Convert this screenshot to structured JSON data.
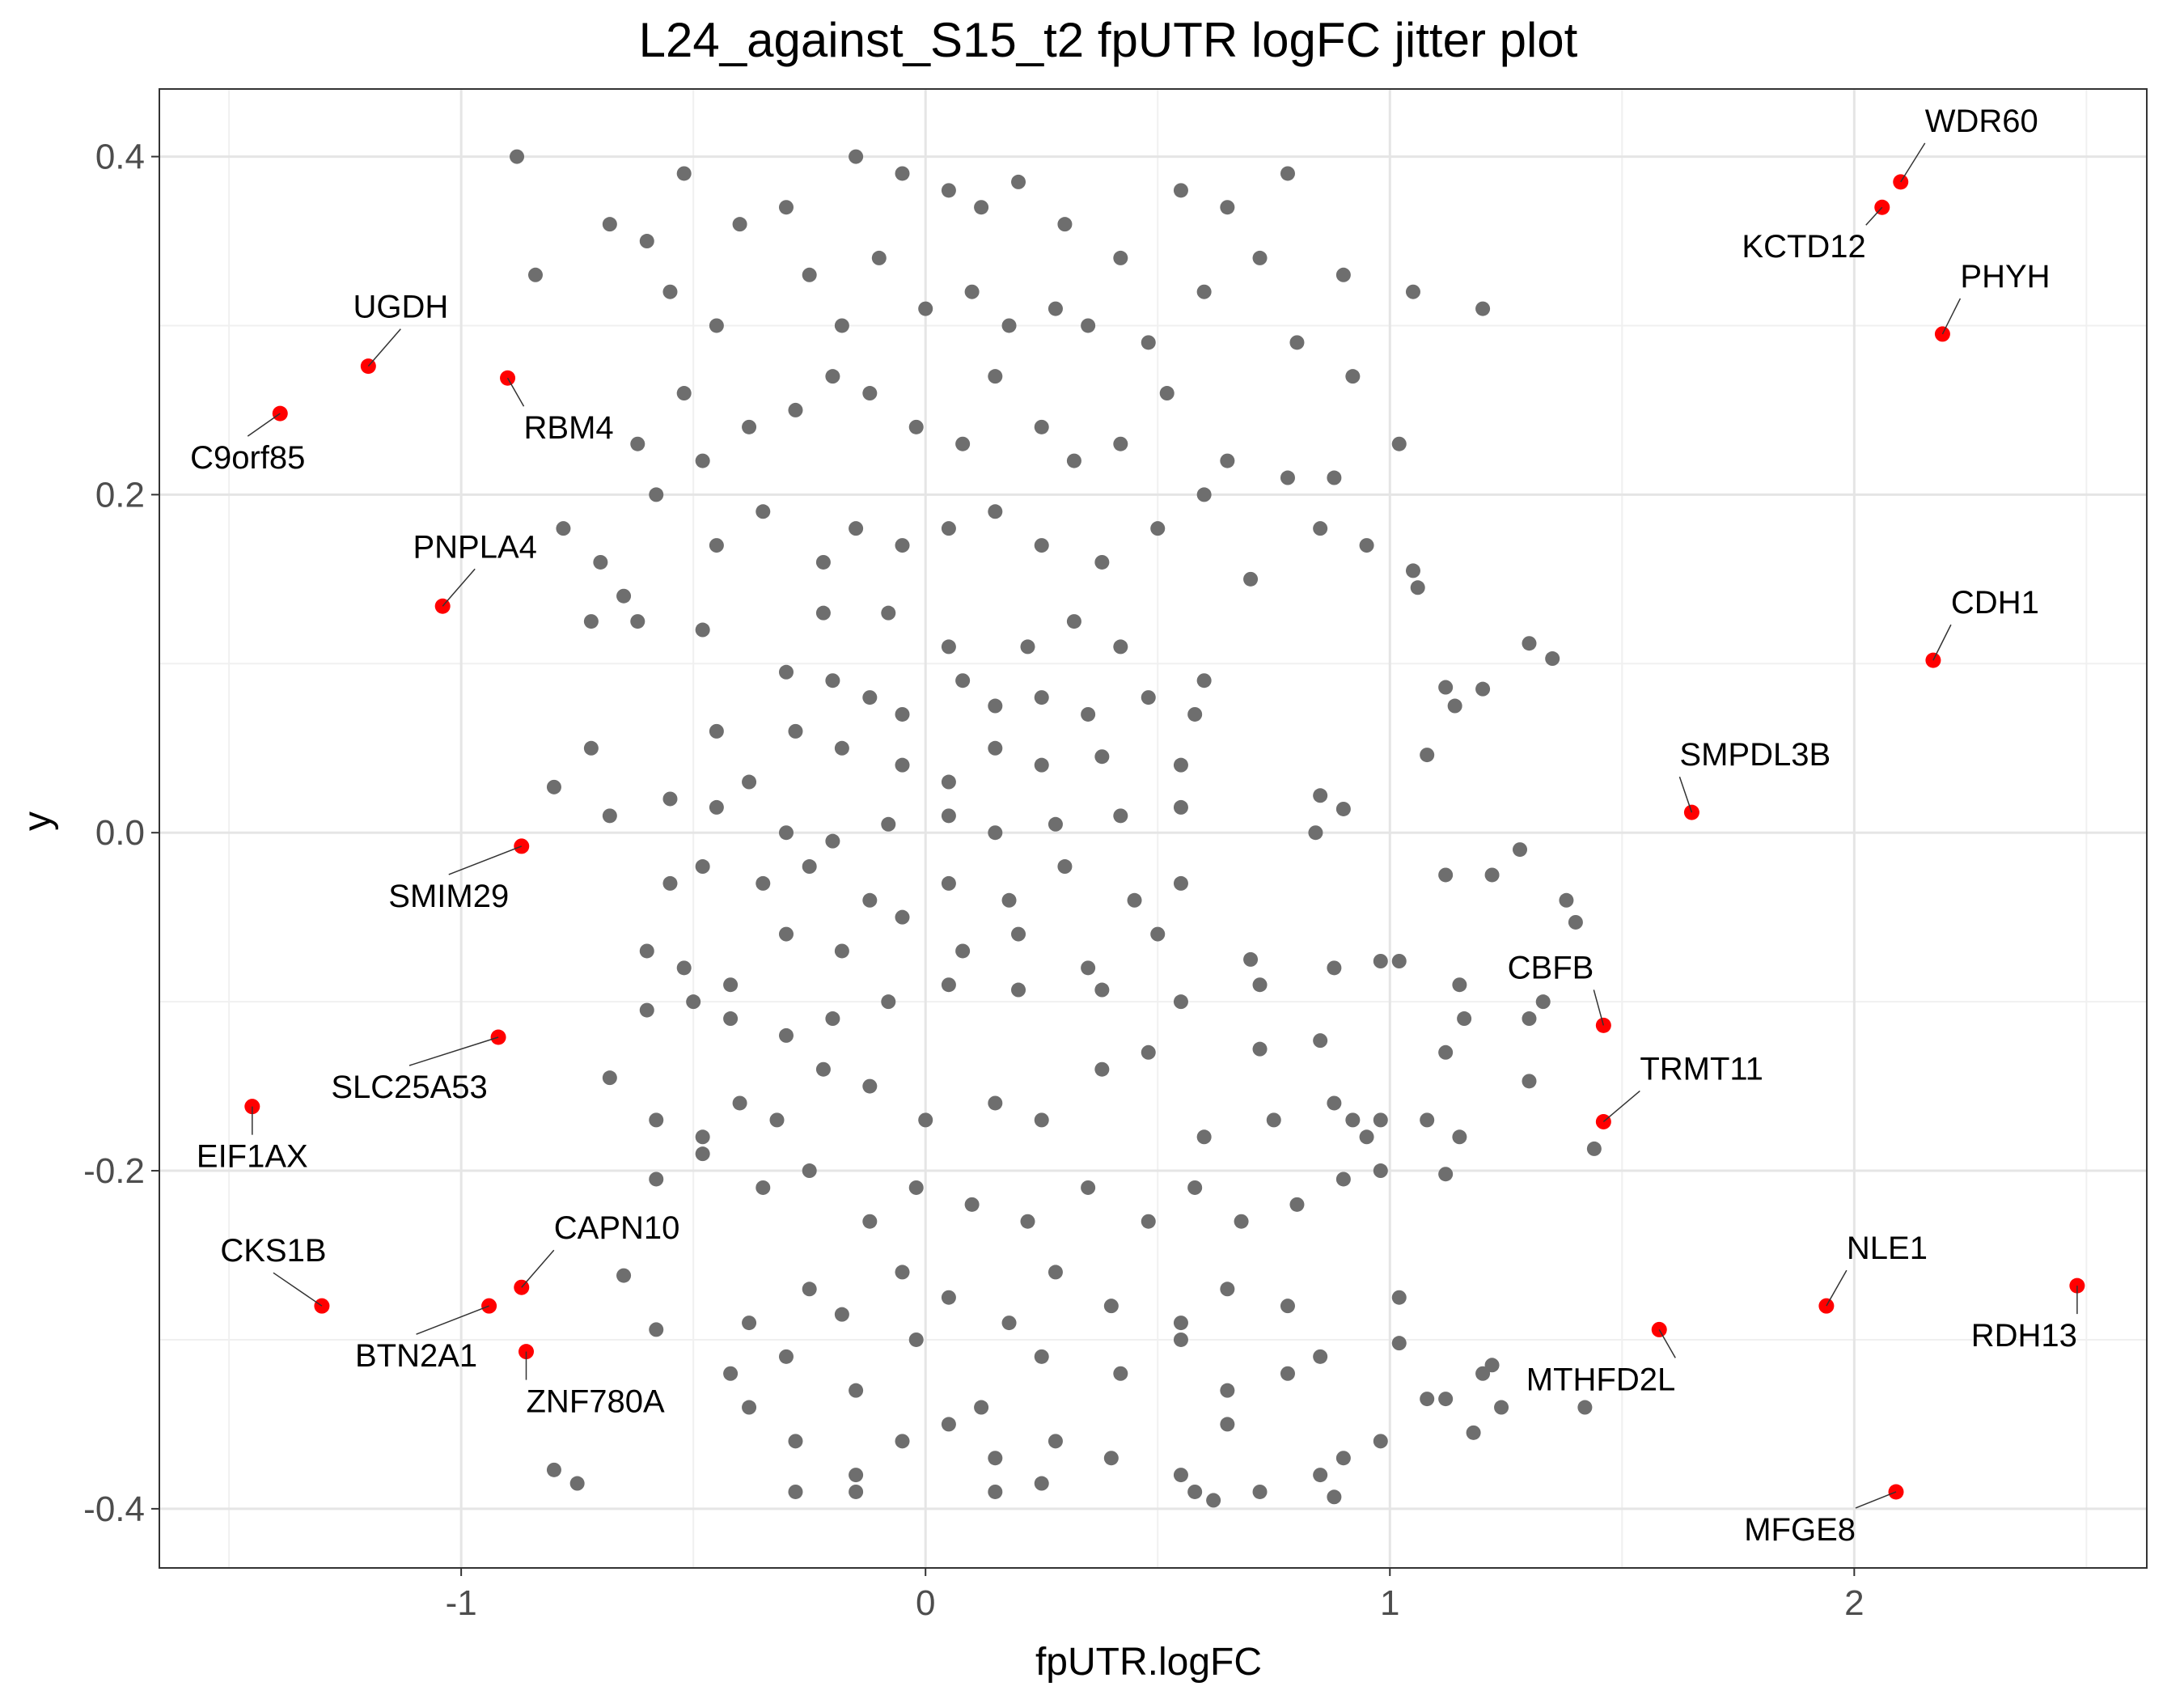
{
  "chart_data": {
    "type": "scatter",
    "title": "L24_against_S15_t2 fpUTR logFC jitter plot",
    "xlabel": "fpUTR.logFC",
    "ylabel": "y",
    "xlim": [
      -1.65,
      2.63
    ],
    "ylim": [
      -0.435,
      0.44
    ],
    "xticks": [
      -1,
      0,
      1,
      2
    ],
    "xtick_labels": [
      "-1",
      "0",
      "1",
      "2"
    ],
    "yticks": [
      -0.4,
      -0.2,
      0.0,
      0.2,
      0.4
    ],
    "ytick_labels": [
      "-0.4",
      "-0.2",
      "0.0",
      "0.2",
      "0.4"
    ],
    "grid": true,
    "colors": {
      "background_points": "#6e6e6e",
      "highlight_points": "#ff0000",
      "grid_major": "#e5e5e5",
      "grid_minor": "#f0f0f0",
      "panel_border": "#333333"
    },
    "highlighted": [
      {
        "label": "WDR60",
        "x": 2.1,
        "y": 0.385
      },
      {
        "label": "KCTD12",
        "x": 2.06,
        "y": 0.37
      },
      {
        "label": "PHYH",
        "x": 2.19,
        "y": 0.295
      },
      {
        "label": "CDH1",
        "x": 2.17,
        "y": 0.102
      },
      {
        "label": "SMPDL3B",
        "x": 1.65,
        "y": 0.012
      },
      {
        "label": "CBFB",
        "x": 1.46,
        "y": -0.114
      },
      {
        "label": "TRMT11",
        "x": 1.46,
        "y": -0.171
      },
      {
        "label": "NLE1",
        "x": 1.94,
        "y": -0.28
      },
      {
        "label": "RDH13",
        "x": 2.48,
        "y": -0.268
      },
      {
        "label": "MTHFD2L",
        "x": 1.58,
        "y": -0.294
      },
      {
        "label": "MFGE8",
        "x": 2.09,
        "y": -0.39
      },
      {
        "label": "UGDH",
        "x": -1.2,
        "y": 0.276
      },
      {
        "label": "C9orf85",
        "x": -1.39,
        "y": 0.248
      },
      {
        "label": "RBM4",
        "x": -0.9,
        "y": 0.269
      },
      {
        "label": "PNPLA4",
        "x": -1.04,
        "y": 0.134
      },
      {
        "label": "SMIM29",
        "x": -0.87,
        "y": -0.008
      },
      {
        "label": "SLC25A53",
        "x": -0.92,
        "y": -0.121
      },
      {
        "label": "EIF1AX",
        "x": -1.45,
        "y": -0.162
      },
      {
        "label": "CKS1B",
        "x": -1.3,
        "y": -0.28
      },
      {
        "label": "CAPN10",
        "x": -0.87,
        "y": -0.269
      },
      {
        "label": "BTN2A1",
        "x": -0.94,
        "y": -0.28
      },
      {
        "label": "ZNF780A",
        "x": -0.86,
        "y": -0.307
      }
    ],
    "background": [
      [
        -0.88,
        0.4
      ],
      [
        -0.84,
        0.33
      ],
      [
        -0.6,
        0.35
      ],
      [
        -0.52,
        0.39
      ],
      [
        -0.4,
        0.36
      ],
      [
        -0.3,
        0.37
      ],
      [
        -0.15,
        0.4
      ],
      [
        -0.05,
        0.39
      ],
      [
        0.05,
        0.38
      ],
      [
        0.12,
        0.37
      ],
      [
        0.2,
        0.385
      ],
      [
        0.3,
        0.36
      ],
      [
        0.42,
        0.34
      ],
      [
        0.55,
        0.38
      ],
      [
        0.65,
        0.37
      ],
      [
        0.78,
        0.39
      ],
      [
        0.9,
        0.33
      ],
      [
        1.05,
        0.32
      ],
      [
        1.2,
        0.31
      ],
      [
        -0.68,
        0.36
      ],
      [
        -0.55,
        0.32
      ],
      [
        -0.45,
        0.3
      ],
      [
        -0.25,
        0.33
      ],
      [
        -0.18,
        0.3
      ],
      [
        -0.1,
        0.34
      ],
      [
        0.0,
        0.31
      ],
      [
        0.1,
        0.32
      ],
      [
        0.18,
        0.3
      ],
      [
        0.28,
        0.31
      ],
      [
        0.35,
        0.3
      ],
      [
        0.48,
        0.29
      ],
      [
        0.6,
        0.32
      ],
      [
        0.72,
        0.34
      ],
      [
        0.8,
        0.29
      ],
      [
        0.92,
        0.27
      ],
      [
        -0.52,
        0.26
      ],
      [
        -0.48,
        0.22
      ],
      [
        -0.62,
        0.23
      ],
      [
        -0.38,
        0.24
      ],
      [
        -0.28,
        0.25
      ],
      [
        -0.2,
        0.27
      ],
      [
        -0.12,
        0.26
      ],
      [
        -0.02,
        0.24
      ],
      [
        0.08,
        0.23
      ],
      [
        0.15,
        0.27
      ],
      [
        0.25,
        0.24
      ],
      [
        0.32,
        0.22
      ],
      [
        0.42,
        0.23
      ],
      [
        0.52,
        0.26
      ],
      [
        0.65,
        0.22
      ],
      [
        0.78,
        0.21
      ],
      [
        0.88,
        0.21
      ],
      [
        1.02,
        0.23
      ],
      [
        -0.78,
        0.18
      ],
      [
        -0.7,
        0.16
      ],
      [
        -0.65,
        0.14
      ],
      [
        -0.58,
        0.2
      ],
      [
        -0.45,
        0.17
      ],
      [
        -0.35,
        0.19
      ],
      [
        -0.22,
        0.16
      ],
      [
        -0.15,
        0.18
      ],
      [
        -0.05,
        0.17
      ],
      [
        0.05,
        0.18
      ],
      [
        0.15,
        0.19
      ],
      [
        0.25,
        0.17
      ],
      [
        0.38,
        0.16
      ],
      [
        0.5,
        0.18
      ],
      [
        0.6,
        0.2
      ],
      [
        0.7,
        0.15
      ],
      [
        0.85,
        0.18
      ],
      [
        0.95,
        0.17
      ],
      [
        1.05,
        0.155
      ],
      [
        1.06,
        0.145
      ],
      [
        -0.72,
        0.125
      ],
      [
        -0.62,
        0.125
      ],
      [
        -0.48,
        0.12
      ],
      [
        -0.22,
        0.13
      ],
      [
        -0.08,
        0.13
      ],
      [
        0.05,
        0.11
      ],
      [
        0.22,
        0.11
      ],
      [
        0.32,
        0.125
      ],
      [
        0.42,
        0.11
      ],
      [
        0.6,
        0.09
      ],
      [
        1.3,
        0.112
      ],
      [
        1.35,
        0.103
      ],
      [
        -0.3,
        0.095
      ],
      [
        -0.2,
        0.09
      ],
      [
        -0.12,
        0.08
      ],
      [
        -0.05,
        0.07
      ],
      [
        0.08,
        0.09
      ],
      [
        0.15,
        0.075
      ],
      [
        0.25,
        0.08
      ],
      [
        0.35,
        0.07
      ],
      [
        0.48,
        0.08
      ],
      [
        0.58,
        0.07
      ],
      [
        1.12,
        0.086
      ],
      [
        1.2,
        0.085
      ],
      [
        1.14,
        0.075
      ],
      [
        -0.72,
        0.05
      ],
      [
        -0.45,
        0.06
      ],
      [
        -0.38,
        0.03
      ],
      [
        -0.28,
        0.06
      ],
      [
        -0.18,
        0.05
      ],
      [
        -0.05,
        0.04
      ],
      [
        0.05,
        0.03
      ],
      [
        0.15,
        0.05
      ],
      [
        0.25,
        0.04
      ],
      [
        0.38,
        0.045
      ],
      [
        0.55,
        0.04
      ],
      [
        1.08,
        0.046
      ],
      [
        -0.8,
        0.027
      ],
      [
        -0.68,
        0.01
      ],
      [
        -0.55,
        0.02
      ],
      [
        -0.45,
        0.015
      ],
      [
        -0.3,
        0.0
      ],
      [
        -0.2,
        -0.005
      ],
      [
        -0.08,
        0.005
      ],
      [
        0.05,
        0.01
      ],
      [
        0.15,
        0.0
      ],
      [
        0.28,
        0.005
      ],
      [
        0.42,
        0.01
      ],
      [
        0.55,
        0.015
      ],
      [
        0.85,
        0.022
      ],
      [
        0.9,
        0.014
      ],
      [
        0.84,
        0.0
      ],
      [
        -0.55,
        -0.03
      ],
      [
        -0.48,
        -0.02
      ],
      [
        -0.35,
        -0.03
      ],
      [
        -0.25,
        -0.02
      ],
      [
        -0.12,
        -0.04
      ],
      [
        0.05,
        -0.03
      ],
      [
        0.18,
        -0.04
      ],
      [
        0.3,
        -0.02
      ],
      [
        0.45,
        -0.04
      ],
      [
        0.55,
        -0.03
      ],
      [
        1.12,
        -0.025
      ],
      [
        1.22,
        -0.025
      ],
      [
        1.28,
        -0.01
      ],
      [
        1.38,
        -0.04
      ],
      [
        1.4,
        -0.053
      ],
      [
        -0.6,
        -0.07
      ],
      [
        -0.52,
        -0.08
      ],
      [
        -0.42,
        -0.09
      ],
      [
        -0.3,
        -0.06
      ],
      [
        -0.18,
        -0.07
      ],
      [
        -0.05,
        -0.05
      ],
      [
        0.08,
        -0.07
      ],
      [
        0.2,
        -0.06
      ],
      [
        0.35,
        -0.08
      ],
      [
        0.5,
        -0.06
      ],
      [
        0.7,
        -0.075
      ],
      [
        0.72,
        -0.09
      ],
      [
        0.88,
        -0.08
      ],
      [
        0.98,
        -0.076
      ],
      [
        1.02,
        -0.076
      ],
      [
        1.15,
        -0.09
      ],
      [
        -0.6,
        -0.105
      ],
      [
        -0.5,
        -0.1
      ],
      [
        -0.42,
        -0.11
      ],
      [
        -0.3,
        -0.12
      ],
      [
        -0.2,
        -0.11
      ],
      [
        -0.08,
        -0.1
      ],
      [
        0.05,
        -0.09
      ],
      [
        0.2,
        -0.093
      ],
      [
        0.38,
        -0.093
      ],
      [
        0.55,
        -0.1
      ],
      [
        0.72,
        -0.128
      ],
      [
        0.85,
        -0.123
      ],
      [
        1.12,
        -0.13
      ],
      [
        1.16,
        -0.11
      ],
      [
        1.3,
        -0.11
      ],
      [
        1.33,
        -0.1
      ],
      [
        -0.68,
        -0.145
      ],
      [
        -0.58,
        -0.17
      ],
      [
        -0.48,
        -0.18
      ],
      [
        -0.4,
        -0.16
      ],
      [
        -0.32,
        -0.17
      ],
      [
        -0.22,
        -0.14
      ],
      [
        -0.12,
        -0.15
      ],
      [
        0.0,
        -0.17
      ],
      [
        0.15,
        -0.16
      ],
      [
        0.25,
        -0.17
      ],
      [
        0.38,
        -0.14
      ],
      [
        0.48,
        -0.13
      ],
      [
        0.6,
        -0.18
      ],
      [
        0.75,
        -0.17
      ],
      [
        0.88,
        -0.16
      ],
      [
        0.92,
        -0.17
      ],
      [
        0.95,
        -0.18
      ],
      [
        0.98,
        -0.17
      ],
      [
        1.08,
        -0.17
      ],
      [
        1.15,
        -0.18
      ],
      [
        1.3,
        -0.147
      ],
      [
        1.44,
        -0.187
      ],
      [
        -0.58,
        -0.205
      ],
      [
        -0.48,
        -0.19
      ],
      [
        -0.35,
        -0.21
      ],
      [
        -0.25,
        -0.2
      ],
      [
        -0.12,
        -0.23
      ],
      [
        -0.02,
        -0.21
      ],
      [
        0.1,
        -0.22
      ],
      [
        0.22,
        -0.23
      ],
      [
        0.35,
        -0.21
      ],
      [
        0.48,
        -0.23
      ],
      [
        0.58,
        -0.21
      ],
      [
        0.68,
        -0.23
      ],
      [
        0.8,
        -0.22
      ],
      [
        0.9,
        -0.205
      ],
      [
        0.98,
        -0.2
      ],
      [
        1.12,
        -0.202
      ],
      [
        -0.65,
        -0.262
      ],
      [
        -0.38,
        -0.29
      ],
      [
        -0.25,
        -0.27
      ],
      [
        -0.18,
        -0.285
      ],
      [
        -0.05,
        -0.26
      ],
      [
        0.05,
        -0.275
      ],
      [
        0.18,
        -0.29
      ],
      [
        0.28,
        -0.26
      ],
      [
        0.4,
        -0.28
      ],
      [
        0.55,
        -0.29
      ],
      [
        0.65,
        -0.27
      ],
      [
        0.78,
        -0.28
      ],
      [
        1.02,
        -0.275
      ],
      [
        -0.58,
        -0.294
      ],
      [
        -0.42,
        -0.32
      ],
      [
        -0.3,
        -0.31
      ],
      [
        -0.15,
        -0.33
      ],
      [
        -0.02,
        -0.3
      ],
      [
        0.12,
        -0.34
      ],
      [
        0.25,
        -0.31
      ],
      [
        0.42,
        -0.32
      ],
      [
        0.55,
        -0.3
      ],
      [
        0.65,
        -0.33
      ],
      [
        0.78,
        -0.32
      ],
      [
        0.85,
        -0.31
      ],
      [
        1.02,
        -0.302
      ],
      [
        1.08,
        -0.335
      ],
      [
        1.12,
        -0.335
      ],
      [
        1.2,
        -0.32
      ],
      [
        1.22,
        -0.315
      ],
      [
        1.42,
        -0.34
      ],
      [
        -0.8,
        -0.377
      ],
      [
        -0.75,
        -0.385
      ],
      [
        -0.38,
        -0.34
      ],
      [
        -0.28,
        -0.36
      ],
      [
        -0.15,
        -0.38
      ],
      [
        -0.05,
        -0.36
      ],
      [
        0.05,
        -0.35
      ],
      [
        0.15,
        -0.37
      ],
      [
        0.28,
        -0.36
      ],
      [
        0.4,
        -0.37
      ],
      [
        0.55,
        -0.38
      ],
      [
        0.65,
        -0.35
      ],
      [
        0.72,
        -0.39
      ],
      [
        0.85,
        -0.38
      ],
      [
        0.9,
        -0.37
      ],
      [
        0.98,
        -0.36
      ],
      [
        1.18,
        -0.355
      ],
      [
        1.24,
        -0.34
      ],
      [
        -0.28,
        -0.39
      ],
      [
        -0.15,
        -0.39
      ],
      [
        0.15,
        -0.39
      ],
      [
        0.25,
        -0.385
      ],
      [
        0.58,
        -0.39
      ],
      [
        0.62,
        -0.395
      ],
      [
        0.88,
        -0.393
      ]
    ]
  }
}
